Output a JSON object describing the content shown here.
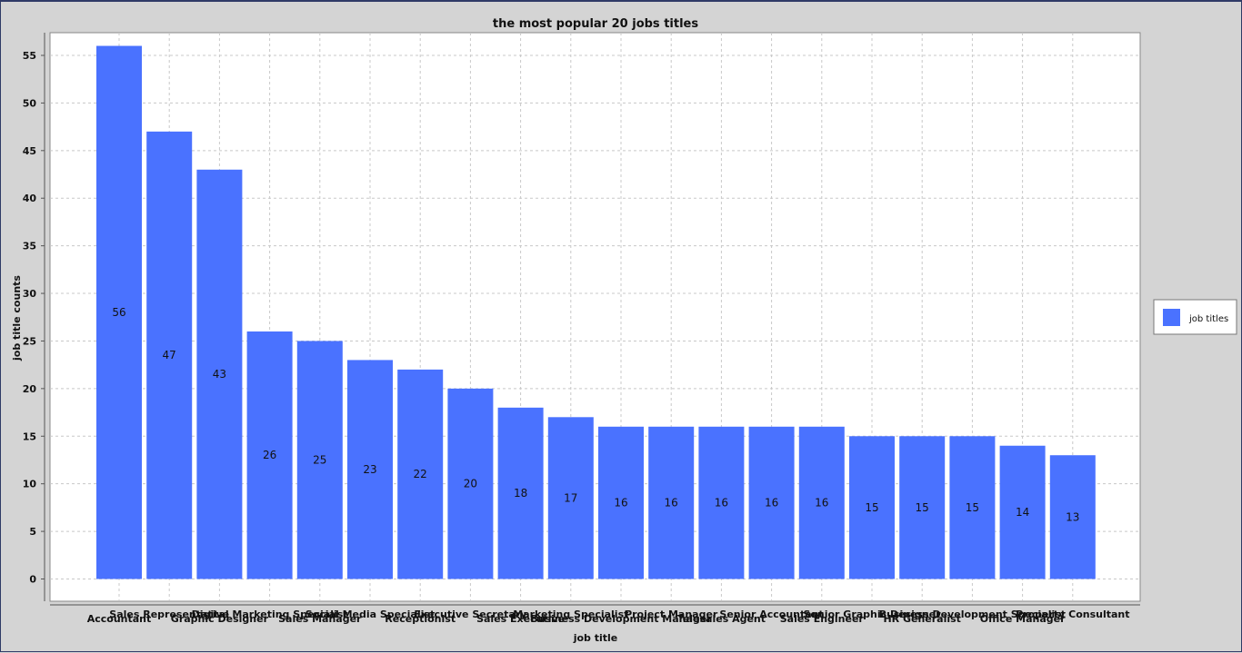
{
  "chart_data": {
    "type": "bar",
    "title": "the most popular 20 jobs titles",
    "xlabel": "job title",
    "ylabel": "job title counts",
    "ylim": [
      -2,
      58
    ],
    "yticks": [
      0,
      5,
      10,
      15,
      20,
      25,
      30,
      35,
      40,
      45,
      50,
      55
    ],
    "grid": true,
    "legend": "right",
    "bar_color": "#4a72ff",
    "categories": [
      "Accountant",
      "Sales Representative",
      "Graphic Designer",
      "Digital Marketing Specialist",
      "Sales Manager",
      "Social Media Specialist",
      "Receptionist",
      "Executive Secretary",
      "Sales Executive",
      "Marketing Specialist",
      "Business Development Manager",
      "Project Manager",
      "Telesales Agent",
      "Senior Accountant",
      "Sales Engineer",
      "Senior Graphic Designer",
      "HR Generalist",
      "Business Development Specialist",
      "Office Manager",
      "Property Consultant"
    ],
    "series": [
      {
        "name": "job titles",
        "values": [
          56,
          47,
          43,
          26,
          25,
          23,
          22,
          20,
          18,
          17,
          16,
          16,
          16,
          16,
          16,
          15,
          15,
          15,
          14,
          13
        ]
      }
    ]
  }
}
